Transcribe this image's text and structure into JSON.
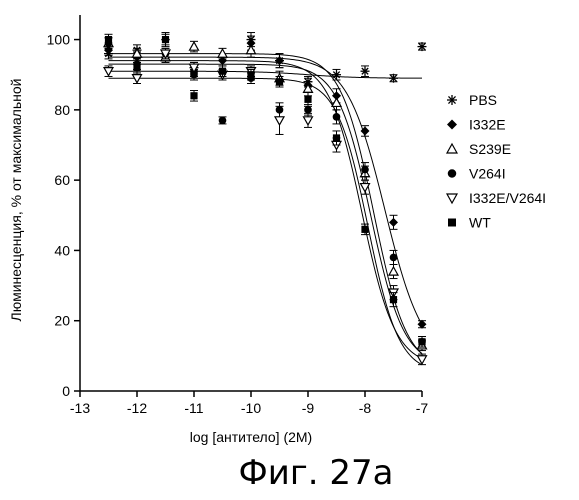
{
  "chart_data": {
    "type": "scatter",
    "title": "",
    "xlabel": "log [антитело] (2M)",
    "ylabel": "Люминесценция, % от максимальной",
    "xlim": [
      -13,
      -7
    ],
    "ylim": [
      0,
      105
    ],
    "xticks": [
      -13,
      -12,
      -11,
      -10,
      -9,
      -8,
      -7
    ],
    "yticks": [
      0,
      20,
      40,
      60,
      80,
      100
    ],
    "grid": false,
    "legend_position": "right",
    "caption": "Фиг. 27а",
    "series": [
      {
        "name": "PBS",
        "marker": "asterisk",
        "x": [
          -12.5,
          -12,
          -11.5,
          -11,
          -10,
          -9.5,
          -9,
          -8.5,
          -8,
          -7.5,
          -7
        ],
        "y": [
          96,
          97,
          95,
          92,
          100,
          94,
          88,
          90,
          91,
          89,
          98
        ],
        "err": [
          1.5,
          1.5,
          1.5,
          1.5,
          2,
          2,
          1.5,
          1.5,
          1.5,
          1,
          1
        ],
        "curve": {
          "top": 91,
          "bottom": 89,
          "logEC50": -9.0,
          "hill": 1.0
        }
      },
      {
        "name": "I332E",
        "marker": "diamond-filled",
        "x": [
          -12.5,
          -12,
          -11.5,
          -11,
          -10.5,
          -10,
          -9.5,
          -9,
          -8.5,
          -8,
          -7.5,
          -7
        ],
        "y": [
          97,
          95,
          100,
          91,
          94,
          99,
          94,
          87,
          84,
          74,
          48,
          19
        ],
        "err": [
          1.5,
          1.5,
          2,
          1.5,
          1.5,
          2,
          2,
          2,
          2,
          1.5,
          2,
          1
        ],
        "curve": {
          "top": 95,
          "bottom": 8,
          "logEC50": -7.65,
          "hill": 1.3
        }
      },
      {
        "name": "S239E",
        "marker": "triangle-up-open",
        "x": [
          -12.5,
          -12,
          -11.5,
          -11,
          -10.5,
          -10,
          -9.5,
          -9,
          -8.5,
          -8,
          -7.5,
          -7
        ],
        "y": [
          99,
          96,
          95,
          98,
          96,
          97,
          89,
          86,
          82,
          62,
          34,
          13
        ],
        "err": [
          1.5,
          1.5,
          1.5,
          1.5,
          1.5,
          2,
          2,
          2,
          2,
          2,
          2,
          1.5
        ],
        "curve": {
          "top": 96,
          "bottom": 6,
          "logEC50": -7.85,
          "hill": 1.5
        }
      },
      {
        "name": "V264I",
        "marker": "circle-filled",
        "x": [
          -12.5,
          -12,
          -11.5,
          -11,
          -10.5,
          -10,
          -9.5,
          -9,
          -8.5,
          -8,
          -7.5,
          -7
        ],
        "y": [
          99,
          93,
          96,
          90,
          77,
          89,
          80,
          80,
          78,
          63,
          38,
          14
        ],
        "err": [
          1.5,
          1.5,
          1.5,
          1.5,
          1,
          1.5,
          2,
          1.5,
          2,
          2,
          2,
          1.5
        ],
        "curve": {
          "top": 93,
          "bottom": 7,
          "logEC50": -7.9,
          "hill": 1.5
        }
      },
      {
        "name": "I332E/V264I",
        "marker": "triangle-down-open",
        "x": [
          -12.5,
          -12,
          -11.5,
          -11,
          -10.5,
          -10,
          -9.5,
          -9,
          -8.5,
          -8,
          -7.5,
          -7
        ],
        "y": [
          91,
          89,
          96,
          92,
          90,
          91,
          77,
          77,
          70,
          58,
          28,
          9
        ],
        "err": [
          1.5,
          1.5,
          1.5,
          1.5,
          1.5,
          1.5,
          4,
          2,
          2,
          2,
          2,
          1.5
        ],
        "curve": {
          "top": 89,
          "bottom": 5,
          "logEC50": -7.95,
          "hill": 1.6
        }
      },
      {
        "name": "WT",
        "marker": "square-filled",
        "x": [
          -12.5,
          -12,
          -11.5,
          -11,
          -10.5,
          -10,
          -9.5,
          -9,
          -8.5,
          -8,
          -7.5,
          -7
        ],
        "y": [
          100,
          92,
          100,
          84,
          91,
          90,
          88,
          83,
          72,
          46,
          26,
          14
        ],
        "err": [
          1.5,
          1.5,
          1.5,
          1.5,
          1.5,
          1.5,
          1.5,
          2,
          2,
          1.5,
          2,
          1.5
        ],
        "curve": {
          "top": 94,
          "bottom": 7,
          "logEC50": -8.05,
          "hill": 1.5
        }
      }
    ]
  }
}
